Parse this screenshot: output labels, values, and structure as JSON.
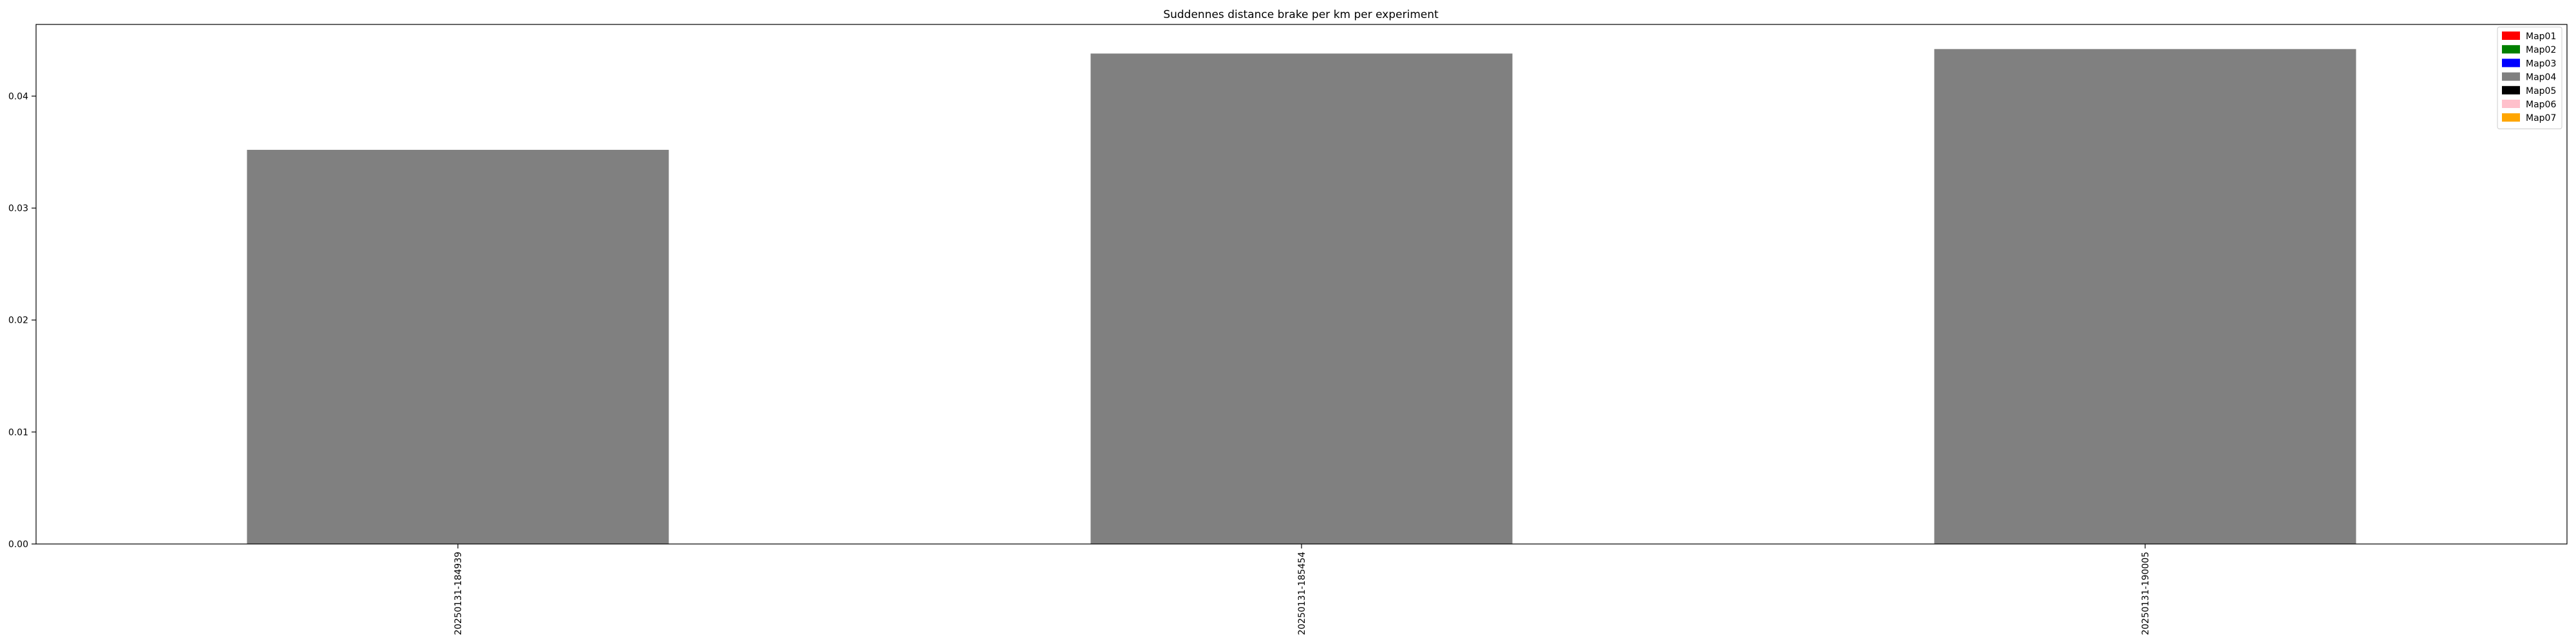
{
  "chart_data": {
    "type": "bar",
    "title": "Suddennes distance brake per km per experiment",
    "xlabel": "",
    "ylabel": "",
    "categories": [
      "20250131-184939",
      "20250131-185454",
      "20250131-190005"
    ],
    "values": [
      0.0352,
      0.0438,
      0.0442
    ],
    "bar_color": "#808080",
    "ylim": [
      0,
      0.0464
    ],
    "yticks": [
      0.0,
      0.01,
      0.02,
      0.03,
      0.04
    ],
    "ytick_labels": [
      "0.00",
      "0.01",
      "0.02",
      "0.03",
      "0.04"
    ],
    "grid": false,
    "legend": {
      "placement": "top-right",
      "entries": [
        {
          "label": "Map01",
          "color": "#ff0000"
        },
        {
          "label": "Map02",
          "color": "#008000"
        },
        {
          "label": "Map03",
          "color": "#0000ff"
        },
        {
          "label": "Map04",
          "color": "#808080"
        },
        {
          "label": "Map05",
          "color": "#000000"
        },
        {
          "label": "Map06",
          "color": "#ffc0cb"
        },
        {
          "label": "Map07",
          "color": "#ffa500"
        }
      ]
    }
  }
}
